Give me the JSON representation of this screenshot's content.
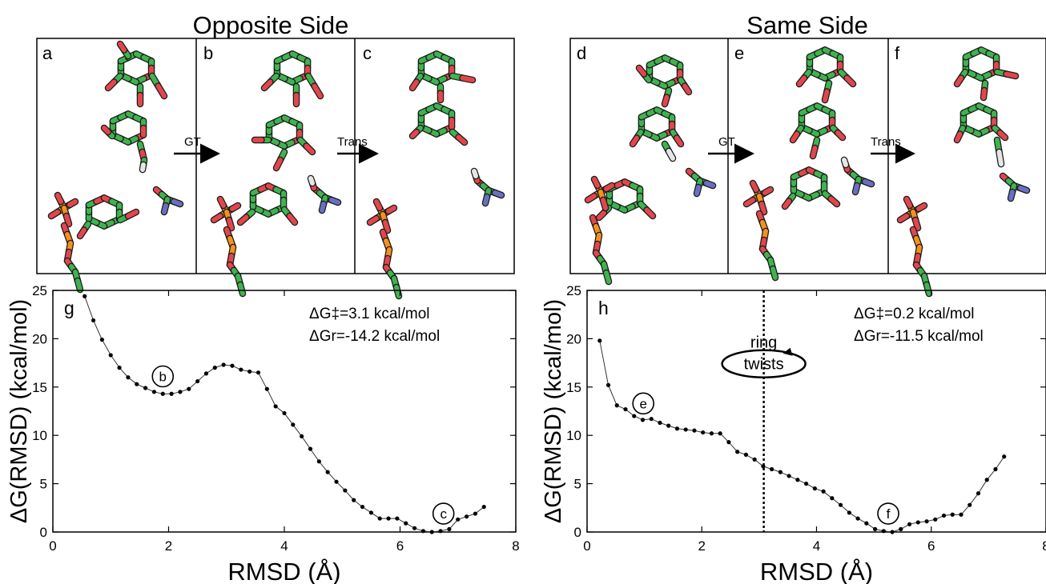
{
  "titles": {
    "left": "Opposite Side",
    "right": "Same Side"
  },
  "panels": {
    "a": "a",
    "b": "b",
    "c": "c",
    "d": "d",
    "e": "e",
    "f": "f",
    "arrows": {
      "ab": "GT",
      "bc": "Trans",
      "de": "GT",
      "ef": "Trans"
    }
  },
  "colors": {
    "carbon": "#3fb34f",
    "oxygen": "#e0474c",
    "phosphorus": "#f5901e",
    "nitrogen": "#6a6fc1",
    "hydrogen": "#e6e6e6",
    "curve": "#000000"
  },
  "chart_data": [
    {
      "type": "line",
      "panel_label": "g",
      "xlabel": "RMSD (Å)",
      "ylabel": "ΔG(RMSD) (kcal/mol)",
      "xlim": [
        0,
        8
      ],
      "ylim": [
        0,
        25
      ],
      "xticks": [
        0,
        2,
        4,
        6,
        8
      ],
      "yticks": [
        0,
        5,
        10,
        15,
        20,
        25
      ],
      "annotations": {
        "barrier_label": "ΔG‡=3.1 kcal/mol",
        "reaction_label": "ΔGr=-14.2 kcal/mol",
        "circle_b": "b",
        "circle_c": "c"
      },
      "points": [
        [
          0.55,
          24.4
        ],
        [
          0.7,
          21.9
        ],
        [
          0.85,
          19.9
        ],
        [
          1.0,
          18.3
        ],
        [
          1.15,
          17.0
        ],
        [
          1.3,
          16.0
        ],
        [
          1.45,
          15.3
        ],
        [
          1.6,
          14.9
        ],
        [
          1.75,
          14.5
        ],
        [
          1.9,
          14.3
        ],
        [
          2.05,
          14.3
        ],
        [
          2.2,
          14.5
        ],
        [
          2.35,
          14.8
        ],
        [
          2.5,
          15.6
        ],
        [
          2.65,
          16.4
        ],
        [
          2.8,
          17.0
        ],
        [
          2.95,
          17.3
        ],
        [
          3.1,
          17.2
        ],
        [
          3.25,
          16.8
        ],
        [
          3.4,
          16.6
        ],
        [
          3.55,
          16.5
        ],
        [
          3.7,
          14.8
        ],
        [
          3.85,
          13.0
        ],
        [
          4.0,
          12.3
        ],
        [
          4.15,
          11.1
        ],
        [
          4.3,
          9.9
        ],
        [
          4.45,
          8.6
        ],
        [
          4.6,
          7.3
        ],
        [
          4.75,
          6.2
        ],
        [
          4.9,
          5.2
        ],
        [
          5.05,
          4.3
        ],
        [
          5.2,
          3.3
        ],
        [
          5.35,
          2.6
        ],
        [
          5.5,
          2.0
        ],
        [
          5.65,
          1.4
        ],
        [
          5.8,
          1.4
        ],
        [
          5.95,
          1.4
        ],
        [
          6.1,
          0.9
        ],
        [
          6.25,
          0.4
        ],
        [
          6.4,
          0.1
        ],
        [
          6.55,
          0.0
        ],
        [
          6.7,
          0.1
        ],
        [
          6.85,
          0.3
        ],
        [
          7.0,
          1.3
        ],
        [
          7.15,
          1.6
        ],
        [
          7.3,
          1.9
        ],
        [
          7.45,
          2.6
        ]
      ]
    },
    {
      "type": "line",
      "panel_label": "h",
      "xlabel": "RMSD (Å)",
      "ylabel": "ΔG(RMSD) (kcal/mol)",
      "xlim": [
        0,
        8
      ],
      "ylim": [
        0,
        25
      ],
      "xticks": [
        0,
        2,
        4,
        6,
        8
      ],
      "yticks": [
        0,
        5,
        10,
        15,
        20,
        25
      ],
      "vline_x": 3.08,
      "annotations": {
        "barrier_label": "ΔG‡=0.2 kcal/mol",
        "reaction_label": "ΔGr=-11.5 kcal/mol",
        "ring_twists_1": "ring",
        "ring_twists_2": "twists",
        "circle_e": "e",
        "circle_f": "f"
      },
      "points": [
        [
          0.22,
          19.8
        ],
        [
          0.37,
          15.2
        ],
        [
          0.52,
          13.1
        ],
        [
          0.67,
          12.7
        ],
        [
          0.82,
          12.0
        ],
        [
          0.97,
          11.6
        ],
        [
          1.12,
          11.7
        ],
        [
          1.27,
          11.3
        ],
        [
          1.42,
          11.0
        ],
        [
          1.57,
          10.7
        ],
        [
          1.72,
          10.6
        ],
        [
          1.87,
          10.5
        ],
        [
          2.02,
          10.3
        ],
        [
          2.17,
          10.2
        ],
        [
          2.32,
          10.2
        ],
        [
          2.47,
          9.3
        ],
        [
          2.62,
          8.3
        ],
        [
          2.77,
          8.0
        ],
        [
          2.92,
          7.5
        ],
        [
          3.07,
          6.8
        ],
        [
          3.22,
          6.5
        ],
        [
          3.37,
          6.2
        ],
        [
          3.52,
          5.8
        ],
        [
          3.67,
          5.4
        ],
        [
          3.82,
          5.0
        ],
        [
          3.97,
          4.5
        ],
        [
          4.12,
          4.2
        ],
        [
          4.27,
          3.5
        ],
        [
          4.42,
          2.8
        ],
        [
          4.57,
          2.0
        ],
        [
          4.72,
          1.4
        ],
        [
          4.87,
          0.9
        ],
        [
          5.02,
          0.3
        ],
        [
          5.17,
          0.1
        ],
        [
          5.32,
          0.0
        ],
        [
          5.47,
          0.3
        ],
        [
          5.62,
          0.8
        ],
        [
          5.77,
          1.0
        ],
        [
          5.92,
          1.1
        ],
        [
          6.07,
          1.3
        ],
        [
          6.22,
          1.7
        ],
        [
          6.37,
          1.8
        ],
        [
          6.52,
          1.8
        ],
        [
          6.67,
          2.8
        ],
        [
          6.82,
          4.0
        ],
        [
          6.97,
          5.4
        ],
        [
          7.12,
          6.5
        ],
        [
          7.27,
          7.8
        ]
      ]
    }
  ]
}
